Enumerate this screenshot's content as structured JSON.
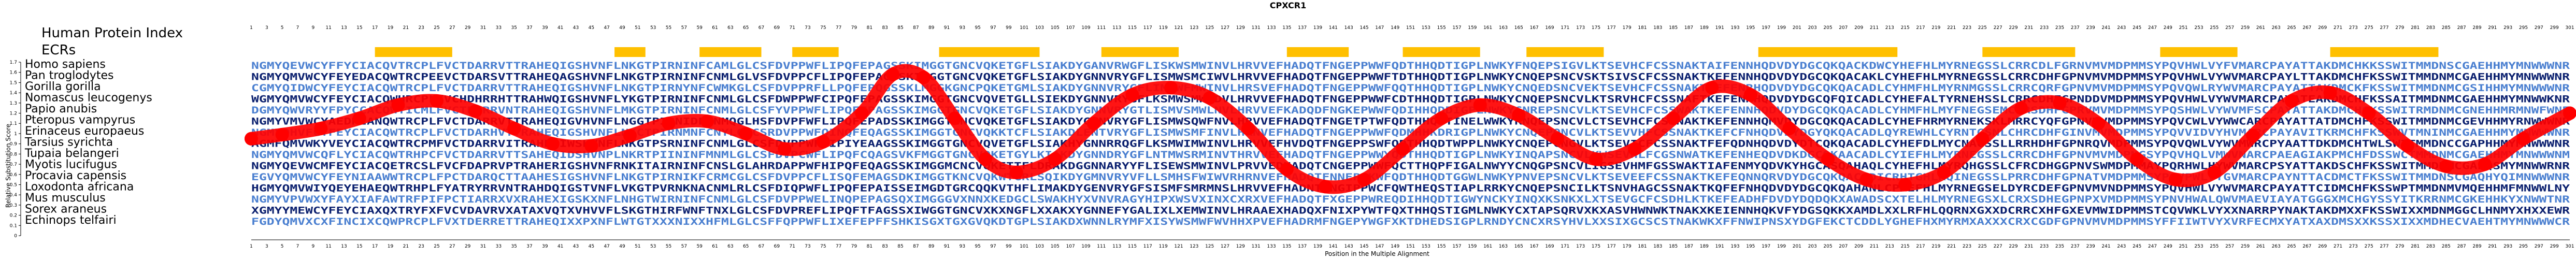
{
  "chart_data": {
    "type": "line",
    "title": "CPXCR1",
    "xlabel": "Position in the Multiple Alignment",
    "ylabel": "Relative Substitution Score",
    "xlim": [
      1,
      301
    ],
    "ylim": [
      0,
      1.7
    ],
    "yticks": [
      "0",
      "0.1",
      "0.2",
      "0.3",
      "0.4",
      "0.5",
      "0.6",
      "0.7",
      "0.8",
      "0.9",
      "1",
      "1.1",
      "1.2",
      "1.3",
      "1.4",
      "1.5",
      "1.6",
      "1.7"
    ],
    "track_labels": {
      "index": "Human Protein Index",
      "ecrs": "ECRs"
    },
    "species": [
      "Homo sapiens",
      "Pan troglodytes",
      "Gorilla gorilla",
      "Nomascus leucogenys",
      "Papio anubis",
      "Pteropus vampyrus",
      "Erinaceus europaeus",
      "Tarsius syrichta",
      "Tupaia belangeri",
      "Myotis lucifugus",
      "Procavia capensis",
      "Loxodonta africana",
      "Mus musculus",
      "Sorex araneus",
      "Echinops telfairi"
    ],
    "ecrs": [
      [
        17,
        27
      ],
      [
        48,
        52
      ],
      [
        59,
        67
      ],
      [
        71,
        77
      ],
      [
        90,
        103
      ],
      [
        111,
        121
      ],
      [
        135,
        143
      ],
      [
        150,
        160
      ],
      [
        166,
        176
      ],
      [
        196,
        214
      ],
      [
        225,
        237
      ],
      [
        248,
        258
      ],
      [
        270,
        284
      ]
    ],
    "series": [
      {
        "color": "#ff0000",
        "x": [
          1,
          5,
          10,
          15,
          20,
          25,
          30,
          35,
          40,
          45,
          50,
          55,
          60,
          65,
          70,
          75,
          80,
          84,
          88,
          92,
          96,
          100,
          105,
          110,
          115,
          120,
          125,
          130,
          135,
          140,
          145,
          150,
          155,
          160,
          165,
          170,
          175,
          180,
          185,
          190,
          195,
          200,
          205,
          210,
          215,
          220,
          225,
          230,
          235,
          240,
          245,
          250,
          255,
          260,
          265,
          270,
          275,
          280,
          285,
          290,
          295,
          301
        ],
        "y": [
          0.95,
          0.99,
          1.05,
          1.15,
          1.28,
          1.32,
          1.22,
          1.05,
          0.9,
          0.88,
          0.98,
          1.1,
          1.12,
          1.0,
          0.85,
          0.92,
          1.2,
          1.58,
          1.55,
          1.15,
          0.75,
          0.62,
          0.75,
          1.1,
          1.38,
          1.45,
          1.35,
          1.05,
          0.65,
          0.48,
          0.55,
          0.85,
          1.15,
          1.28,
          1.18,
          0.95,
          0.75,
          0.85,
          1.15,
          1.45,
          1.38,
          1.05,
          0.75,
          0.55,
          0.5,
          0.62,
          0.95,
          1.25,
          1.3,
          1.1,
          0.75,
          0.55,
          0.62,
          0.98,
          1.32,
          1.4,
          1.2,
          0.88,
          0.68,
          0.7,
          0.95,
          1.2
        ]
      }
    ],
    "grid": false,
    "legend": "none",
    "colors": {
      "line": "#ff0000",
      "ecr_box": "#ffc000",
      "sequence_light": "#4a7fd0",
      "sequence_dark": "#0a1f6e",
      "background": "#ffffff"
    }
  }
}
